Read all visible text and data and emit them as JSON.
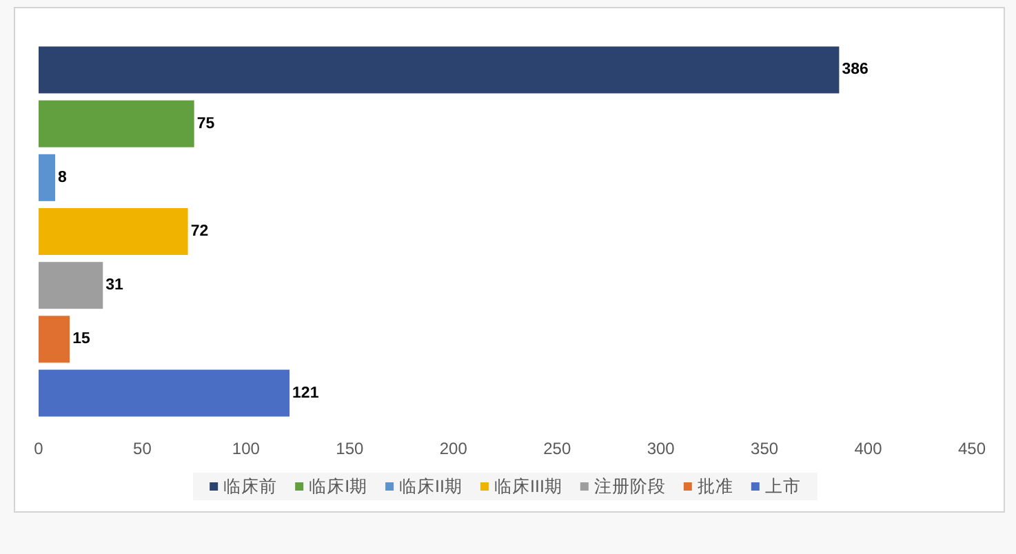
{
  "chart_data": {
    "type": "bar",
    "orientation": "horizontal",
    "stacked": true,
    "categories": [
      null,
      null,
      null,
      null,
      null,
      null,
      null
    ],
    "series": [
      {
        "name": "临床前",
        "color": "#2c4370",
        "values": [
          386,
          null,
          null,
          null,
          null,
          null,
          null
        ]
      },
      {
        "name": "临床I期",
        "color": "#62a03f",
        "values": [
          null,
          75,
          null,
          null,
          null,
          null,
          null
        ]
      },
      {
        "name": "临床II期",
        "color": "#5b92d0",
        "values": [
          null,
          null,
          8,
          null,
          null,
          null,
          null
        ]
      },
      {
        "name": "临床III期",
        "color": "#f0b400",
        "values": [
          null,
          null,
          null,
          72,
          null,
          null,
          null
        ]
      },
      {
        "name": "注册阶段",
        "color": "#9e9e9e",
        "values": [
          null,
          null,
          null,
          null,
          31,
          null,
          null
        ]
      },
      {
        "name": "批准",
        "color": "#e07030",
        "values": [
          null,
          null,
          null,
          null,
          null,
          15,
          null
        ]
      },
      {
        "name": "上市",
        "color": "#4a6ec4",
        "values": [
          null,
          null,
          null,
          null,
          null,
          null,
          121
        ]
      }
    ],
    "xlim": [
      0,
      450
    ],
    "xticks": [
      0,
      50,
      100,
      150,
      200,
      250,
      300,
      350,
      400,
      450
    ],
    "tick_labels": "x",
    "data_labels": true,
    "legend": "bottom",
    "grid": false
  }
}
